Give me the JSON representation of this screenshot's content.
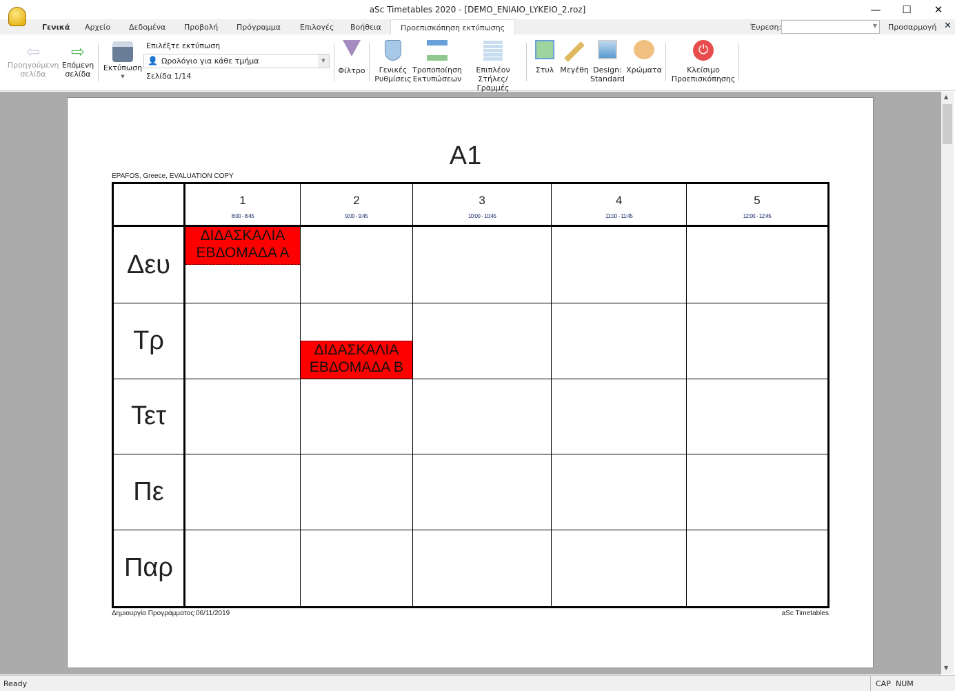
{
  "window": {
    "title": "aSc Timetables 2020  - [DEMO_ENIAIO_LYKEIO_2.roz]",
    "minimize": "—",
    "maximize": "☐",
    "close": "✕"
  },
  "tabs": [
    "Γενικά",
    "Αρχείο",
    "Δεδομένα",
    "Προβολή",
    "Πρόγραμμα",
    "Επιλογές",
    "Βοήθεια",
    "Προεπισκόπηση εκτύπωσης"
  ],
  "search": {
    "label": "Έυρεση:",
    "value": ""
  },
  "customize": "Προσαρμογή",
  "ribbon": {
    "prev_page": [
      "Προηγούμενη",
      "σελίδα"
    ],
    "next_page": [
      "Επόμενη",
      "σελίδα"
    ],
    "print": "Εκτύπωση",
    "choose_print_label": "Επιλέξτε εκτύπωση",
    "print_select": "Ωρολόγιο για κάθε τμήμα",
    "page_info": "Σελίδα 1/14",
    "filter": "Φίλτρο",
    "general_settings": [
      "Γενικές",
      "Ρυθμίσεις"
    ],
    "modify_prints": [
      "Τροποποίηση",
      "Εκτυπώσεων"
    ],
    "extra_cols": [
      "Επιπλέον",
      "Στήλες/Γραμμές"
    ],
    "style": "Στυλ",
    "sizes": "Μεγέθη",
    "design": [
      "Design:",
      "Standard"
    ],
    "colors": "Χρώματα",
    "close_preview": [
      "Κλείσιμο",
      "Προεπισκόπησης"
    ]
  },
  "colors": {
    "card": "#ff0000",
    "close": "#e84c4c"
  },
  "timetable": {
    "title": "A1",
    "school": "EPAFOS, Greece, EVALUATION COPY",
    "periods": [
      {
        "num": "1",
        "time": "8:00 - 8:45"
      },
      {
        "num": "2",
        "time": "9:00 - 9:45"
      },
      {
        "num": "3",
        "time": "10:00 - 10:45"
      },
      {
        "num": "4",
        "time": "11:00 - 11:45"
      },
      {
        "num": "5",
        "time": "12:00 - 12:45"
      }
    ],
    "days": [
      "Δευ",
      "Τρ",
      "Τετ",
      "Πε",
      "Παρ"
    ],
    "cards": [
      {
        "day": 0,
        "period": 0,
        "half": "top",
        "lines": [
          "ΔΙΔΑΣΚΑΛΙΑ",
          "ΕΒΔΟΜΑΔΑ Α"
        ]
      },
      {
        "day": 1,
        "period": 1,
        "half": "bottom",
        "lines": [
          "ΔΙΔΑΣΚΑΛΙΑ",
          "ΕΒΔΟΜΑΔΑ Β"
        ]
      }
    ],
    "footer_left": "Δημιουργία Προγράμματος:06/11/2019",
    "footer_right": "aSc Timetables"
  },
  "status": {
    "text": "Ready",
    "cap": "CAP",
    "num": "NUM"
  }
}
